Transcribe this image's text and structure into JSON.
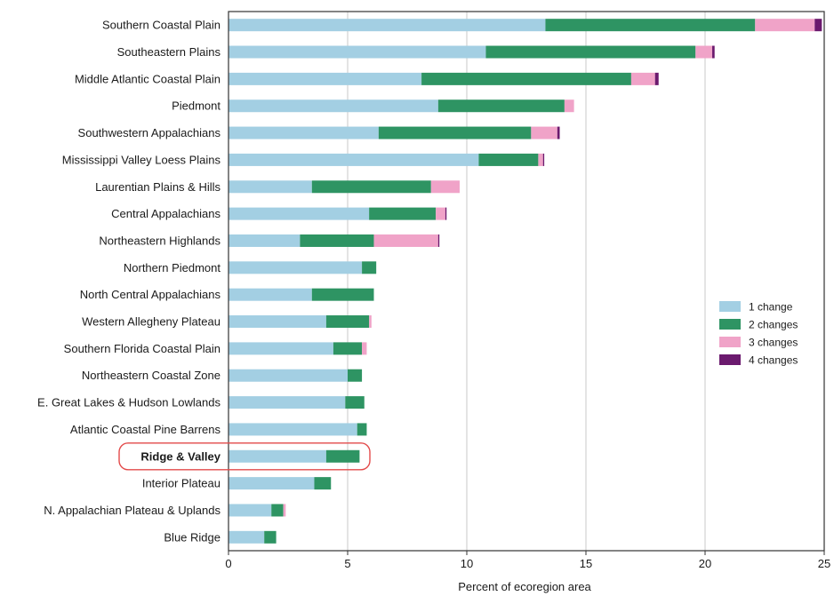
{
  "chart_data": {
    "type": "bar",
    "orientation": "horizontal",
    "stacked": true,
    "title": "",
    "xlabel": "Percent of ecoregion area",
    "ylabel": "",
    "xlim": [
      0,
      25
    ],
    "x_ticks": [
      "0",
      "5",
      "10",
      "15",
      "20",
      "25"
    ],
    "grid": "vertical",
    "legend_position": "right",
    "highlighted_category": "Ridge & Valley",
    "categories": [
      "Southern Coastal Plain",
      "Southeastern Plains",
      "Middle Atlantic Coastal Plain",
      "Piedmont",
      "Southwestern Appalachians",
      "Mississippi Valley Loess Plains",
      "Laurentian Plains & Hills",
      "Central Appalachians",
      "Northeastern Highlands",
      "Northern Piedmont",
      "North Central Appalachians",
      "Western Allegheny Plateau",
      "Southern Florida Coastal Plain",
      "Northeastern Coastal Zone",
      "E. Great Lakes & Hudson Lowlands",
      "Atlantic Coastal Pine Barrens",
      "Ridge & Valley",
      "Interior Plateau",
      "N. Appalachian Plateau & Uplands",
      "Blue Ridge"
    ],
    "series": [
      {
        "name": "1 change",
        "color": "#a3cfe3",
        "values": [
          13.3,
          10.8,
          8.1,
          8.8,
          6.3,
          10.5,
          3.5,
          5.9,
          3.0,
          5.6,
          3.5,
          4.1,
          4.4,
          5.0,
          4.9,
          5.4,
          4.1,
          3.6,
          1.8,
          1.5
        ]
      },
      {
        "name": "2 changes",
        "color": "#2e9463",
        "values": [
          8.8,
          8.8,
          8.8,
          5.3,
          6.4,
          2.5,
          5.0,
          2.8,
          3.1,
          0.6,
          2.6,
          1.8,
          1.2,
          0.6,
          0.8,
          0.4,
          1.4,
          0.7,
          0.5,
          0.5
        ]
      },
      {
        "name": "3 changes",
        "color": "#f0a3c8",
        "values": [
          2.5,
          0.7,
          1.0,
          0.4,
          1.1,
          0.2,
          1.2,
          0.4,
          2.7,
          0,
          0,
          0.1,
          0.2,
          0,
          0,
          0,
          0,
          0,
          0.1,
          0
        ]
      },
      {
        "name": "4 changes",
        "color": "#6b1a6e",
        "values": [
          0.3,
          0.1,
          0.15,
          0,
          0.1,
          0.05,
          0,
          0.05,
          0.05,
          0,
          0,
          0,
          0,
          0,
          0,
          0,
          0,
          0,
          0,
          0
        ]
      }
    ]
  }
}
